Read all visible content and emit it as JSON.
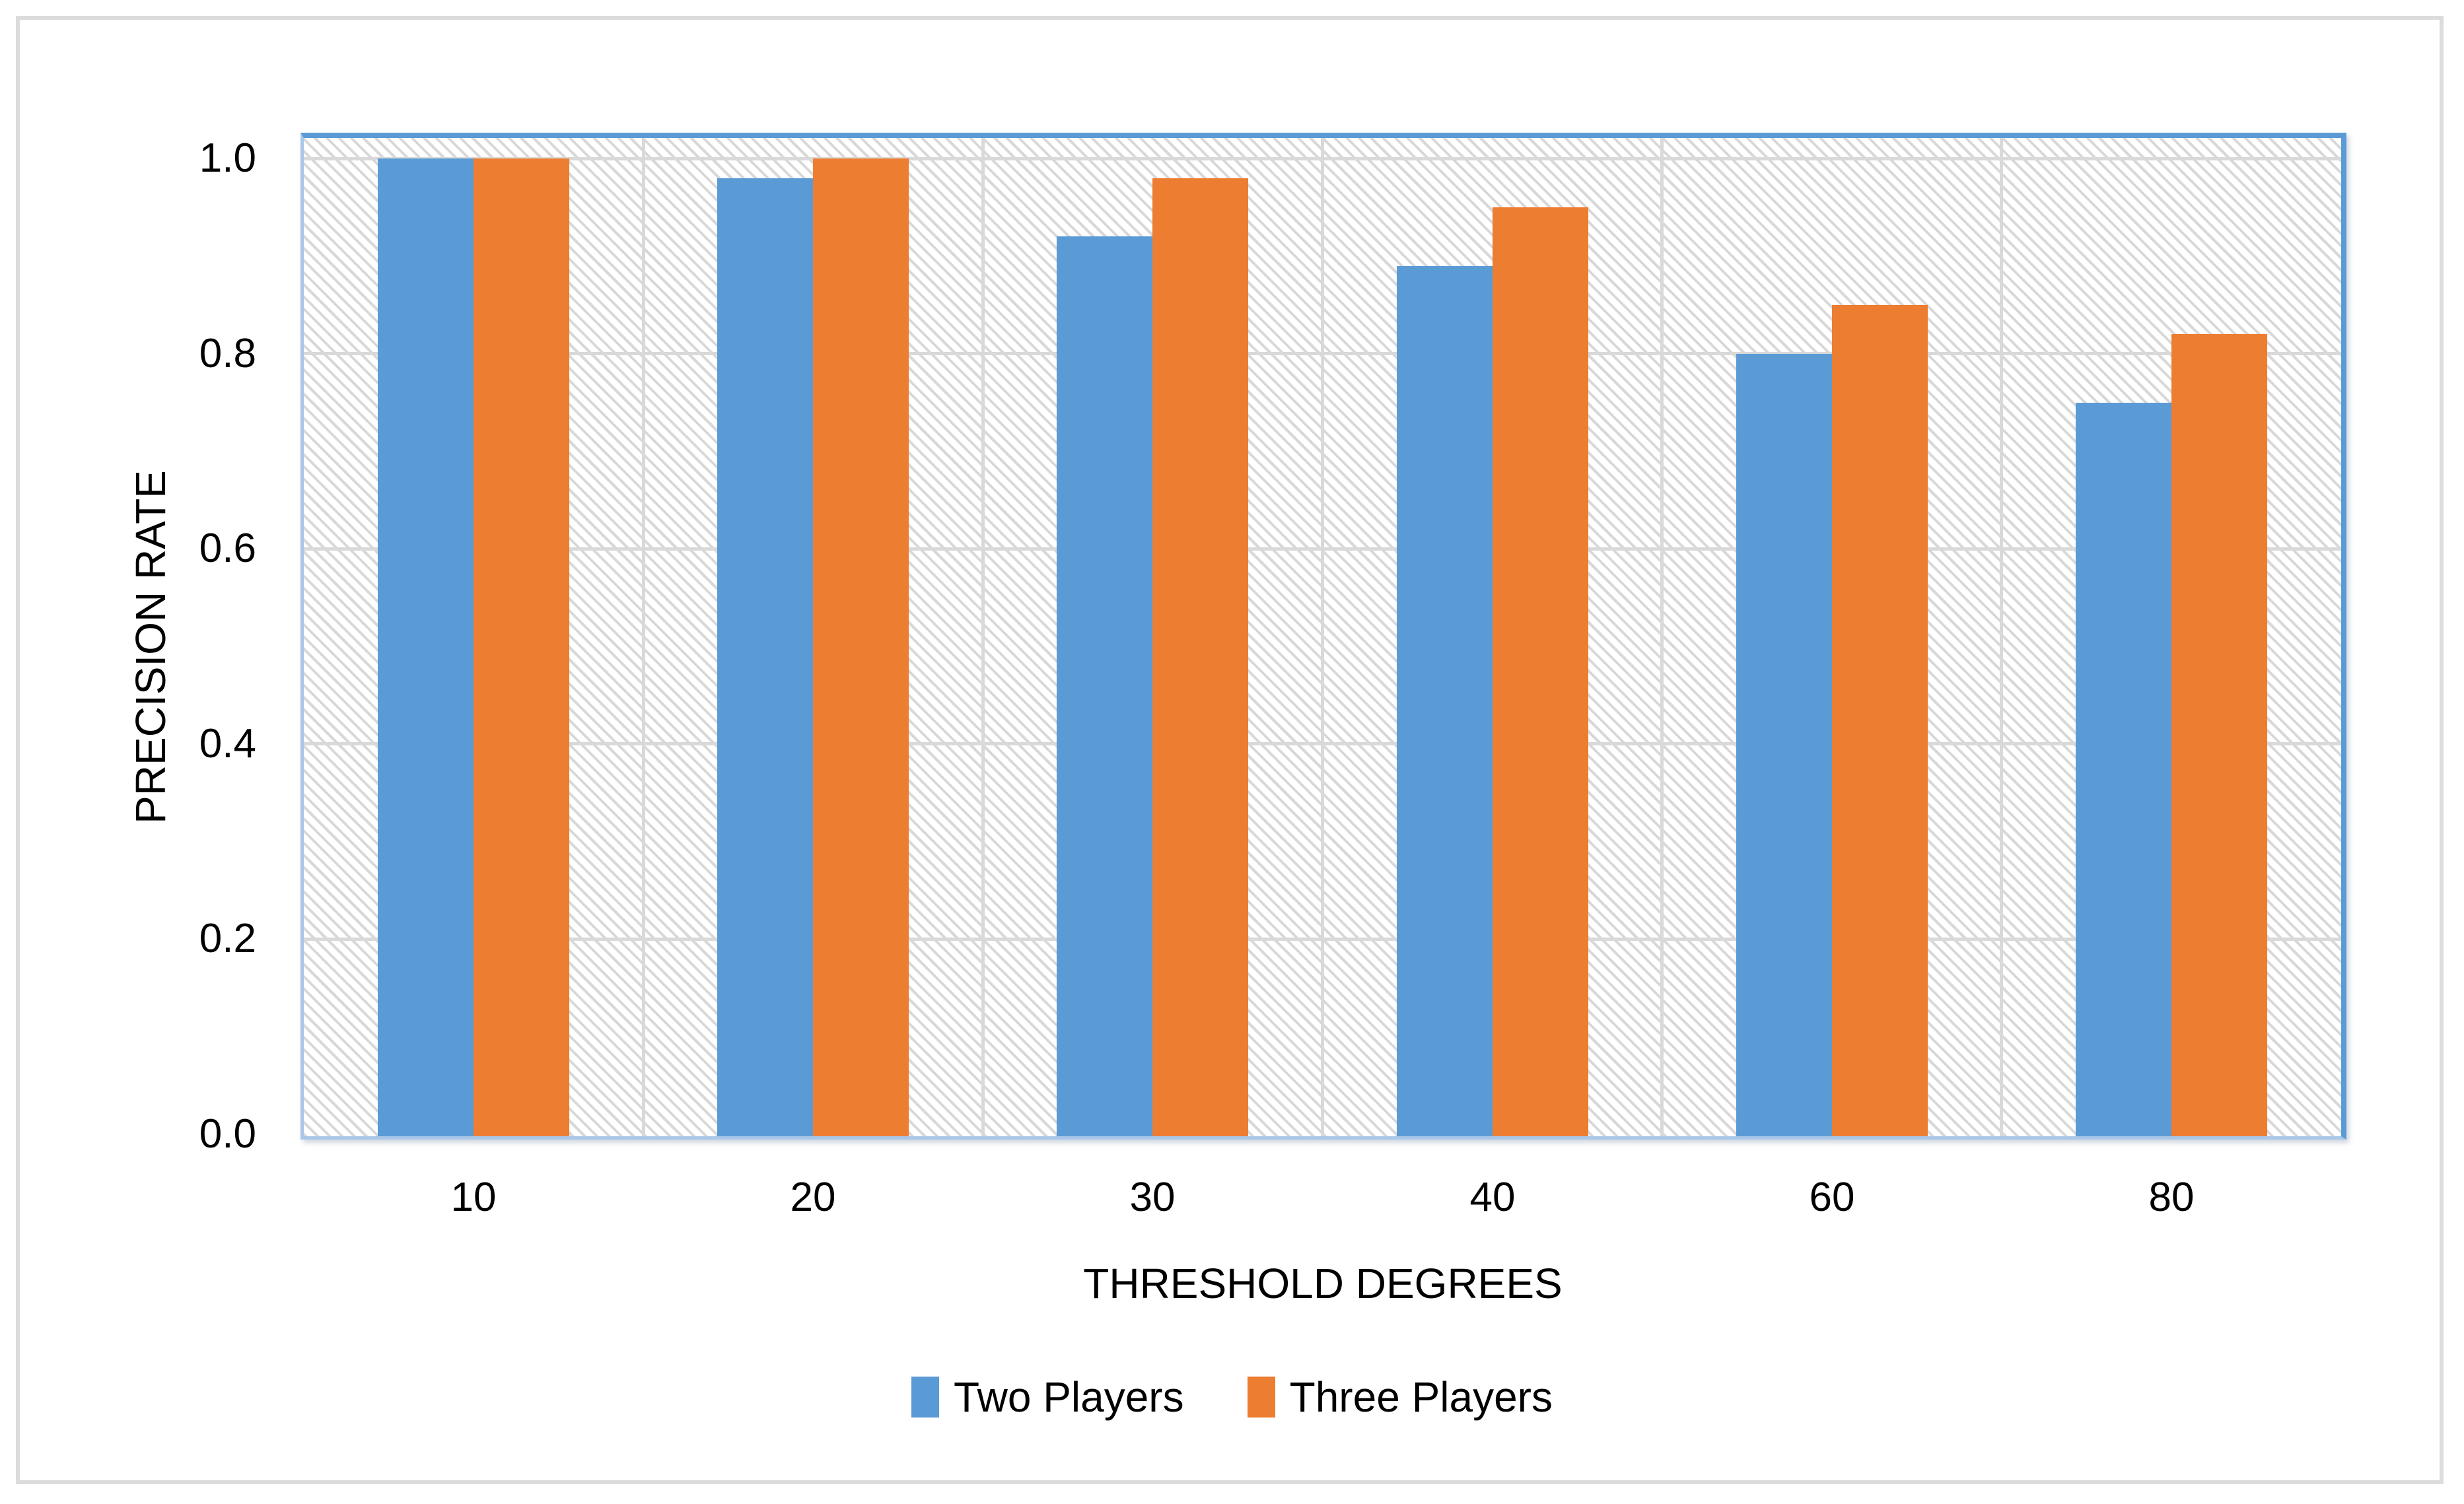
{
  "figure": {
    "background": "#ffffff",
    "outer_border_color": "#dcdcdc"
  },
  "chart_data": {
    "type": "bar",
    "title": "",
    "categories": [
      "10",
      "20",
      "30",
      "40",
      "60",
      "80"
    ],
    "series": [
      {
        "name": "Two Players",
        "color": "#5b9bd5",
        "values": [
          1.0,
          0.98,
          0.92,
          0.89,
          0.8,
          0.75
        ]
      },
      {
        "name": "Three Players",
        "color": "#ed7d31",
        "values": [
          1.0,
          1.0,
          0.98,
          0.95,
          0.85,
          0.82
        ]
      }
    ],
    "xlabel": "THRESHOLD DEGREES",
    "ylabel": "PRECISION RATE",
    "ylim": [
      0.0,
      1.02
    ],
    "yticks": [
      0.0,
      0.2,
      0.4,
      0.6,
      0.8,
      1.0
    ],
    "ytick_labels": [
      "0.0",
      "0.2",
      "0.4",
      "0.6",
      "0.8",
      "1.0"
    ],
    "grid": "horizontal and vertical major gridlines",
    "gridline_color": "#d9d9d9",
    "plot_border_color": "#5b9bd5",
    "axis_line_color": "#a9c7e8",
    "plot_background": "white with light gray downward-diagonal hatch pattern",
    "legend_position": "bottom center",
    "text_color": "#000000"
  }
}
